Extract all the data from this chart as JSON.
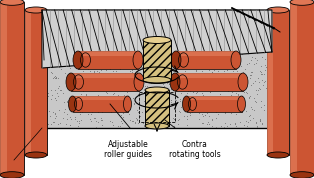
{
  "bg_color": "#ffffff",
  "cyl_face": "#cc5533",
  "cyl_hi": "#e07755",
  "cyl_sh": "#993311",
  "cyl_end_hi": "#dd9977",
  "tool_color": "#d4c080",
  "tool_hi": "#e8d090",
  "frame_color": "#c8c8c8",
  "frame_dot": "#777777",
  "label1": "Adjustable\nroller guides",
  "label2": "Contra\nrotating tools",
  "figsize": [
    3.14,
    1.78
  ],
  "dpi": 100
}
